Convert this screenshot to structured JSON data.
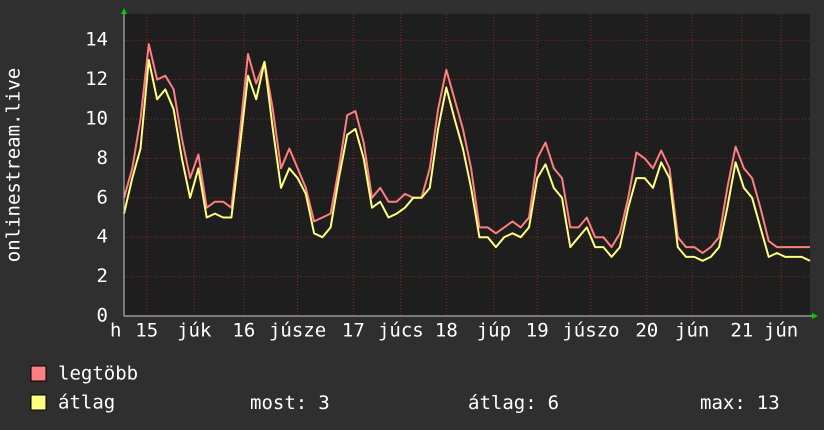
{
  "chart_data": {
    "type": "line",
    "y_label": "onlinestream.live",
    "x": [
      0,
      2,
      4,
      6,
      8,
      10,
      12,
      14,
      16,
      18,
      20,
      22,
      24,
      26,
      28,
      30,
      32,
      34,
      36,
      38,
      40,
      42,
      44,
      46,
      48,
      50,
      52,
      54,
      56,
      58,
      60,
      62,
      64,
      66,
      68,
      70,
      72,
      74,
      76,
      78,
      80,
      82,
      84,
      86,
      88,
      90,
      92,
      94,
      96,
      98,
      100,
      102,
      104,
      106,
      108,
      110,
      112,
      114,
      116,
      118,
      120,
      122,
      124,
      126,
      128,
      130,
      132,
      134,
      136,
      138,
      140,
      142,
      144,
      146,
      148,
      150,
      152,
      154,
      156,
      158,
      160,
      162,
      164,
      166
    ],
    "xlim": [
      0,
      166
    ],
    "xticks": [
      {
        "value": -2,
        "label": "h"
      },
      {
        "value": 5.5,
        "label": "15"
      },
      {
        "value": 17,
        "label": "júk"
      },
      {
        "value": 29,
        "label": "16"
      },
      {
        "value": 42,
        "label": "júsze"
      },
      {
        "value": 55.5,
        "label": "17"
      },
      {
        "value": 67,
        "label": "júcs"
      },
      {
        "value": 78,
        "label": "18"
      },
      {
        "value": 89.5,
        "label": "júp"
      },
      {
        "value": 100,
        "label": "19"
      },
      {
        "value": 113,
        "label": "júszo"
      },
      {
        "value": 126.5,
        "label": "20"
      },
      {
        "value": 137.5,
        "label": "jún"
      },
      {
        "value": 149.5,
        "label": "21"
      },
      {
        "value": 159,
        "label": "jún"
      }
    ],
    "ylim": [
      0,
      15
    ],
    "yticks": [
      0,
      2,
      4,
      6,
      8,
      10,
      12,
      14
    ],
    "grid": true,
    "series": [
      {
        "name": "legtöbb",
        "color": "#ff7f80",
        "values": [
          6.0,
          7.5,
          10,
          13.8,
          12,
          12.2,
          11.5,
          9.0,
          7.0,
          8.2,
          5.5,
          5.8,
          5.8,
          5.5,
          9.2,
          13.3,
          11.8,
          12.9,
          10.5,
          7.5,
          8.5,
          7.5,
          6.5,
          4.8,
          5.0,
          5.2,
          7.5,
          10.2,
          10.4,
          8.8,
          6.0,
          6.5,
          5.8,
          5.8,
          6.2,
          6.0,
          6.0,
          7.5,
          10.5,
          12.5,
          11.0,
          9.5,
          7.5,
          4.5,
          4.5,
          4.2,
          4.5,
          4.8,
          4.5,
          5.0,
          8.0,
          8.8,
          7.5,
          7.0,
          4.5,
          4.5,
          5.0,
          4.0,
          4.0,
          3.5,
          4.2,
          6.0,
          8.3,
          8.0,
          7.5,
          8.4,
          7.5,
          4.0,
          3.5,
          3.5,
          3.2,
          3.5,
          4.0,
          6.5,
          8.6,
          7.5,
          7.0,
          5.5,
          3.8,
          3.5,
          3.5,
          3.5,
          3.5,
          3.5
        ]
      },
      {
        "name": "átlag",
        "color": "#ffff80",
        "values": [
          5.2,
          7.0,
          8.5,
          13.0,
          11.0,
          11.5,
          10.5,
          8.0,
          6.0,
          7.5,
          5.0,
          5.2,
          5.0,
          5.0,
          8.5,
          12.2,
          11.0,
          12.9,
          9.5,
          6.5,
          7.5,
          7.0,
          6.2,
          4.2,
          4.0,
          4.5,
          7.0,
          9.2,
          9.5,
          8.0,
          5.5,
          5.8,
          5.0,
          5.2,
          5.5,
          6.0,
          6.0,
          6.5,
          9.5,
          11.6,
          10.0,
          8.5,
          6.5,
          4.0,
          4.0,
          3.5,
          4.0,
          4.2,
          4.0,
          4.5,
          7.0,
          7.7,
          6.5,
          6.0,
          3.5,
          4.0,
          4.5,
          3.5,
          3.5,
          3.0,
          3.5,
          5.5,
          7.0,
          7.0,
          6.5,
          7.8,
          7.0,
          3.5,
          3.0,
          3.0,
          2.8,
          3.0,
          3.5,
          5.5,
          7.8,
          6.5,
          6.0,
          4.5,
          3.0,
          3.2,
          3.0,
          3.0,
          3.0,
          2.8
        ]
      }
    ],
    "stats": [
      {
        "label": "most:",
        "value": 3
      },
      {
        "label": "átlag:",
        "value": 6
      },
      {
        "label": "max:",
        "value": 13
      }
    ]
  }
}
